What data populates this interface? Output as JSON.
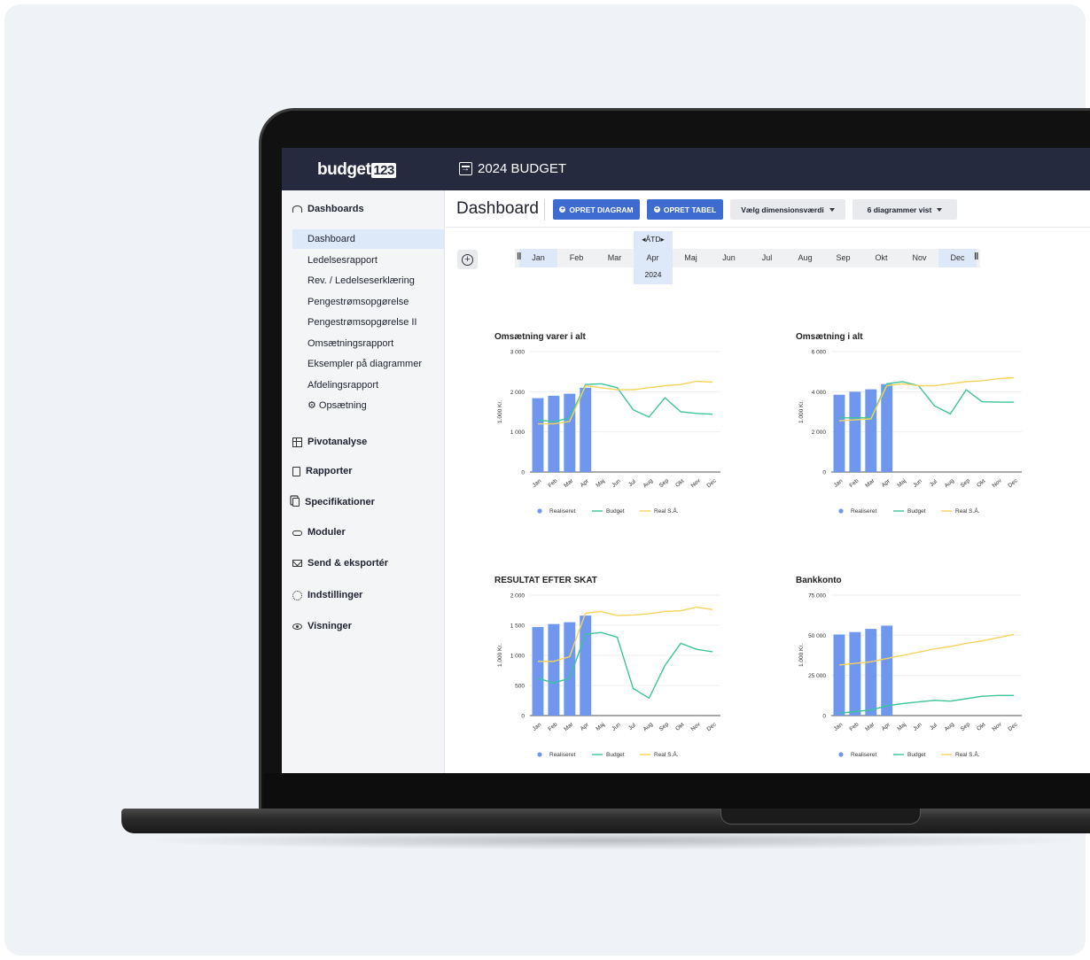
{
  "app": {
    "logo_text": "budget",
    "logo_num": "123",
    "budget_title": "2024 BUDGET"
  },
  "sidebar": {
    "dashboards_label": "Dashboards",
    "items": [
      {
        "label": "Dashboard",
        "active": true
      },
      {
        "label": "Ledelsesrapport"
      },
      {
        "label": "Rev. / Ledelseserklæring"
      },
      {
        "label": "Pengestrømsopgørelse"
      },
      {
        "label": "Pengestrømsopgørelse II"
      },
      {
        "label": "Omsætningsrapport"
      },
      {
        "label": "Eksempler på diagrammer"
      },
      {
        "label": "Afdelingsrapport"
      },
      {
        "label": "⚙ Opsætning"
      }
    ],
    "sections": [
      {
        "label": "Pivotanalyse",
        "icon": "table-icon"
      },
      {
        "label": "Rapporter",
        "icon": "document-icon"
      },
      {
        "label": "Specifikationer",
        "icon": "copy-icon"
      },
      {
        "label": "Moduler",
        "icon": "link-icon"
      },
      {
        "label": "Send & eksportér",
        "icon": "mail-icon"
      },
      {
        "label": "Indstillinger",
        "icon": "gear-icon"
      },
      {
        "label": "Visninger",
        "icon": "eye-icon"
      }
    ]
  },
  "header": {
    "title": "Dashboard",
    "btn_diagram": "OPRET DIAGRAM",
    "btn_tabel": "OPRET TABEL",
    "dimension_select": "Vælg dimensionsværdi",
    "diagram_count_select": "6 diagrammer vist"
  },
  "timeline": {
    "months": [
      "Jan",
      "Feb",
      "Mar",
      "Apr",
      "Maj",
      "Jun",
      "Jul",
      "Aug",
      "Sep",
      "Okt",
      "Nov",
      "Dec"
    ],
    "ytd_label": "◂ÅTD▸",
    "year": "2024",
    "range_start": "Jan",
    "range_end": "Dec",
    "current": "Apr"
  },
  "legend": {
    "realiseret": "Realiseret",
    "budget": "Budget",
    "real_sa": "Real S.Å."
  },
  "colors": {
    "bar": "#6f97ee",
    "budget": "#3cc49b",
    "real_sa": "#f4d35e",
    "accent": "#3e6bd0",
    "topbar": "#262a3e"
  },
  "chart_data": [
    {
      "type": "bar",
      "title": "Omsætning varer i alt",
      "ylabel": "1.000 Kr.",
      "ylim": [
        0,
        3000
      ],
      "yticks": [
        "0",
        "1 000",
        "2 000",
        "3 000"
      ],
      "categories": [
        "Jan",
        "Feb",
        "Mar",
        "Apr",
        "Maj",
        "Jun",
        "Jul",
        "Aug",
        "Sep",
        "Okt",
        "Nov",
        "Dec"
      ],
      "series": [
        {
          "name": "Realiseret",
          "type": "bar",
          "values": [
            1840,
            1900,
            1950,
            2100,
            null,
            null,
            null,
            null,
            null,
            null,
            null,
            null
          ]
        },
        {
          "name": "Budget",
          "type": "line",
          "values": [
            1300,
            1250,
            1350,
            2180,
            2200,
            2100,
            1550,
            1370,
            1850,
            1500,
            1460,
            1440
          ]
        },
        {
          "name": "Real S.Å.",
          "type": "line",
          "values": [
            1200,
            1200,
            1260,
            2150,
            2100,
            2050,
            2050,
            2100,
            2150,
            2180,
            2260,
            2240
          ]
        }
      ],
      "legend": "bottom"
    },
    {
      "type": "bar",
      "title": "Omsætning i alt",
      "ylabel": "1.000 Kr.",
      "ylim": [
        0,
        6000
      ],
      "yticks": [
        "0",
        "2 000",
        "4 000",
        "6 000"
      ],
      "categories": [
        "Jan",
        "Feb",
        "Mar",
        "Apr",
        "Maj",
        "Jun",
        "Jul",
        "Aug",
        "Sep",
        "Okt",
        "Nov",
        "Dec"
      ],
      "series": [
        {
          "name": "Realiseret",
          "type": "bar",
          "values": [
            3850,
            4000,
            4120,
            4380,
            null,
            null,
            null,
            null,
            null,
            null,
            null,
            null
          ]
        },
        {
          "name": "Budget",
          "type": "line",
          "values": [
            2700,
            2700,
            2700,
            4400,
            4500,
            4300,
            3300,
            2900,
            4100,
            3500,
            3480,
            3480
          ]
        },
        {
          "name": "Real S.Å.",
          "type": "line",
          "values": [
            2550,
            2600,
            2650,
            4300,
            4400,
            4300,
            4300,
            4400,
            4500,
            4550,
            4650,
            4700
          ]
        }
      ],
      "legend": "bottom"
    },
    {
      "type": "bar",
      "title": "RESULTAT EFTER SKAT",
      "ylabel": "1.000 Kr.",
      "ylim": [
        0,
        2000
      ],
      "yticks": [
        "0",
        "500",
        "1 000",
        "1 500",
        "2 000"
      ],
      "categories": [
        "Jan",
        "Feb",
        "Mar",
        "Apr",
        "Maj",
        "Jun",
        "Jul",
        "Aug",
        "Sep",
        "Okt",
        "Nov",
        "Dec"
      ],
      "series": [
        {
          "name": "Realiseret",
          "type": "bar",
          "values": [
            1470,
            1520,
            1550,
            1660,
            null,
            null,
            null,
            null,
            null,
            null,
            null,
            null
          ]
        },
        {
          "name": "Budget",
          "type": "line",
          "values": [
            620,
            540,
            620,
            1350,
            1380,
            1300,
            450,
            290,
            830,
            1200,
            1100,
            1060
          ]
        },
        {
          "name": "Real S.Å.",
          "type": "line",
          "values": [
            900,
            900,
            980,
            1700,
            1730,
            1660,
            1670,
            1690,
            1730,
            1740,
            1800,
            1760
          ]
        }
      ],
      "legend": "bottom"
    },
    {
      "type": "bar",
      "title": "Bankkonto",
      "ylabel": "1.000 Kr.",
      "ylim": [
        0,
        75000
      ],
      "yticks": [
        "0",
        "25 000",
        "50 000",
        "75 000"
      ],
      "categories": [
        "Jan",
        "Feb",
        "Mar",
        "Apr",
        "Maj",
        "Jun",
        "Jul",
        "Aug",
        "Sep",
        "Okt",
        "Nov",
        "Dec"
      ],
      "series": [
        {
          "name": "Realiseret",
          "type": "bar",
          "values": [
            50500,
            52000,
            54000,
            56000,
            null,
            null,
            null,
            null,
            null,
            null,
            null,
            null
          ]
        },
        {
          "name": "Budget",
          "type": "line",
          "values": [
            1500,
            2500,
            3500,
            6000,
            7500,
            8500,
            9500,
            9000,
            10500,
            12000,
            12500,
            12500
          ]
        },
        {
          "name": "Real S.Å.",
          "type": "line",
          "values": [
            31500,
            32500,
            33500,
            35500,
            37500,
            39500,
            41500,
            43000,
            45000,
            46500,
            48500,
            50500
          ]
        }
      ],
      "legend": "bottom"
    }
  ]
}
